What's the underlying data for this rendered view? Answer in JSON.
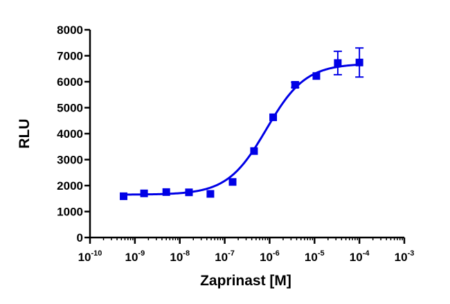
{
  "chart_data": {
    "type": "scatter",
    "title": "",
    "xlabel": "Zaprinast [M]",
    "ylabel": "RLU",
    "x_scale": "log",
    "xlim": [
      1e-10,
      0.001
    ],
    "ylim": [
      0,
      8000
    ],
    "x_tick_base": "10",
    "x_ticks": [
      {
        "value": 1e-10,
        "exp": "-10"
      },
      {
        "value": 1e-09,
        "exp": "-9"
      },
      {
        "value": 1e-08,
        "exp": "-8"
      },
      {
        "value": 1e-07,
        "exp": "-7"
      },
      {
        "value": 1e-06,
        "exp": "-6"
      },
      {
        "value": 1e-05,
        "exp": "-5"
      },
      {
        "value": 0.0001,
        "exp": "-4"
      },
      {
        "value": 0.001,
        "exp": "-3"
      }
    ],
    "y_ticks": [
      {
        "value": 0,
        "label": "0"
      },
      {
        "value": 1000,
        "label": "1000"
      },
      {
        "value": 2000,
        "label": "2000"
      },
      {
        "value": 3000,
        "label": "3000"
      },
      {
        "value": 4000,
        "label": "4000"
      },
      {
        "value": 5000,
        "label": "5000"
      },
      {
        "value": 6000,
        "label": "6000"
      },
      {
        "value": 7000,
        "label": "7000"
      },
      {
        "value": 8000,
        "label": "8000"
      }
    ],
    "grid": false,
    "legend": "none",
    "color": "#0000e6",
    "points": [
      {
        "x": 5.6e-10,
        "y": 1590,
        "err": 0
      },
      {
        "x": 1.6e-09,
        "y": 1700,
        "err": 0
      },
      {
        "x": 5e-09,
        "y": 1750,
        "err": 0
      },
      {
        "x": 1.6e-08,
        "y": 1740,
        "err": 0
      },
      {
        "x": 4.8e-08,
        "y": 1680,
        "err": 0
      },
      {
        "x": 1.5e-07,
        "y": 2140,
        "err": 0
      },
      {
        "x": 4.5e-07,
        "y": 3330,
        "err": 0
      },
      {
        "x": 1.2e-06,
        "y": 4630,
        "err": 0
      },
      {
        "x": 3.7e-06,
        "y": 5880,
        "err": 100
      },
      {
        "x": 1.1e-05,
        "y": 6220,
        "err": 0
      },
      {
        "x": 3.3e-05,
        "y": 6720,
        "err": 450
      },
      {
        "x": 0.0001,
        "y": 6740,
        "err": 560
      }
    ],
    "fit": {
      "model": "four-parameter logistic",
      "bottom": 1650,
      "top": 6700,
      "ec50": 8.5e-07,
      "hill": 1.0
    }
  }
}
